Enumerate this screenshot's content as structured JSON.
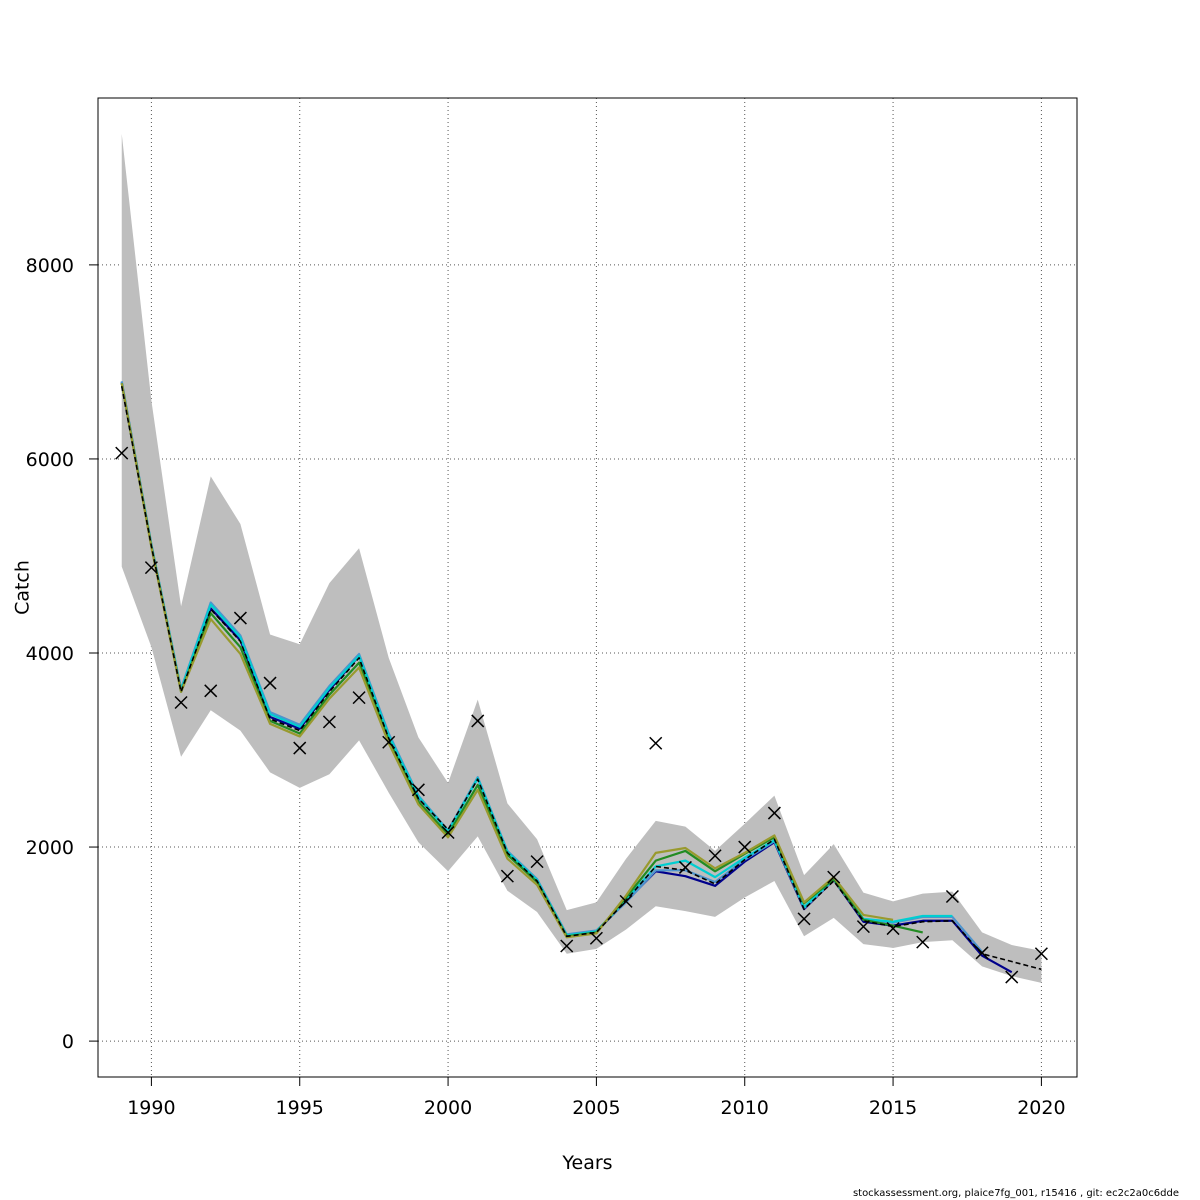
{
  "chart_data": {
    "type": "line",
    "title": "",
    "xlabel": "Years",
    "ylabel": "Catch",
    "xlim": [
      1988.2,
      2021.2
    ],
    "ylim": [
      -370,
      9720
    ],
    "x_ticks": [
      1990,
      1995,
      2000,
      2005,
      2010,
      2015,
      2020
    ],
    "y_ticks": [
      0,
      2000,
      4000,
      6000,
      8000
    ],
    "grid": true,
    "years": [
      1989,
      1990,
      1991,
      1992,
      1993,
      1994,
      1995,
      1996,
      1997,
      1998,
      1999,
      2000,
      2001,
      2002,
      2003,
      2004,
      2005,
      2006,
      2007,
      2008,
      2009,
      2010,
      2011,
      2012,
      2013,
      2014,
      2015,
      2016,
      2017,
      2018,
      2019,
      2020
    ],
    "confidence_band": {
      "color": "#bebebe",
      "upper": [
        9350,
        6600,
        4480,
        5820,
        5330,
        4190,
        4090,
        4720,
        5080,
        3950,
        3130,
        2660,
        3520,
        2450,
        2080,
        1350,
        1430,
        1880,
        2270,
        2210,
        1960,
        2240,
        2530,
        1710,
        2030,
        1530,
        1440,
        1520,
        1540,
        1120,
        990,
        930
      ],
      "lower": [
        4890,
        4060,
        2930,
        3410,
        3200,
        2770,
        2610,
        2750,
        3100,
        2560,
        2050,
        1750,
        2110,
        1550,
        1330,
        900,
        950,
        1150,
        1390,
        1340,
        1280,
        1480,
        1650,
        1080,
        1270,
        1000,
        960,
        1020,
        1040,
        770,
        670,
        600
      ]
    },
    "series": [
      {
        "color": "#000000",
        "dashed": true,
        "values": [
          6750,
          5100,
          3600,
          4450,
          4120,
          3320,
          3200,
          3600,
          3950,
          3120,
          2500,
          2180,
          2700,
          1940,
          1650,
          1080,
          1120,
          1450,
          1800,
          1760,
          1620,
          1870,
          2080,
          1360,
          1650,
          1240,
          1180,
          1230,
          1240,
          900,
          820,
          740
        ]
      },
      {
        "color": "#00008b",
        "dashed": false,
        "values": [
          6790,
          5110,
          3620,
          4460,
          4130,
          3340,
          3220,
          3620,
          3970,
          3140,
          2510,
          2170,
          2710,
          1950,
          1660,
          1090,
          1130,
          1440,
          1750,
          1700,
          1600,
          1850,
          2050,
          1360,
          1660,
          1230,
          1190,
          1240,
          1240,
          880,
          710,
          null
        ]
      },
      {
        "color": "#4f94cd",
        "dashed": false,
        "values": [
          6800,
          5120,
          3630,
          4520,
          4180,
          3390,
          3260,
          3660,
          3990,
          3170,
          2530,
          2170,
          2720,
          1960,
          1670,
          1100,
          1140,
          1430,
          1760,
          1760,
          1640,
          1870,
          2060,
          1370,
          1660,
          1250,
          1220,
          1280,
          1280,
          920,
          null,
          null
        ]
      },
      {
        "color": "#00ced1",
        "dashed": false,
        "values": [
          6780,
          5110,
          3620,
          4500,
          4160,
          3370,
          3240,
          3640,
          3970,
          3150,
          2520,
          2160,
          2710,
          1950,
          1660,
          1090,
          1130,
          1460,
          1800,
          1860,
          1690,
          1890,
          2070,
          1380,
          1670,
          1260,
          1230,
          1290,
          1290,
          null,
          null,
          null
        ]
      },
      {
        "color": "#228b22",
        "dashed": false,
        "values": [
          6780,
          5100,
          3600,
          4410,
          4060,
          3300,
          3170,
          3570,
          3900,
          3100,
          2470,
          2130,
          2640,
          1920,
          1640,
          1080,
          1120,
          1480,
          1860,
          1960,
          1750,
          1930,
          2100,
          1420,
          1670,
          1250,
          1190,
          1120,
          null,
          null,
          null,
          null
        ]
      },
      {
        "color": "#999a2e",
        "dashed": false,
        "values": [
          6780,
          5090,
          3600,
          4350,
          3990,
          3270,
          3140,
          3530,
          3850,
          3070,
          2440,
          2100,
          2590,
          1880,
          1610,
          1070,
          1110,
          1500,
          1940,
          1990,
          1780,
          1940,
          2120,
          1430,
          1690,
          1300,
          1250,
          null,
          null,
          null,
          null,
          null
        ]
      }
    ],
    "observations": {
      "marker": "x",
      "color": "#000000",
      "values": [
        6060,
        4880,
        3490,
        3610,
        4360,
        3690,
        3020,
        3290,
        3540,
        3080,
        2590,
        2150,
        3300,
        1700,
        1850,
        980,
        1060,
        1440,
        3070,
        1790,
        1910,
        2000,
        2350,
        1260,
        1690,
        1180,
        1160,
        1020,
        1490,
        910,
        660,
        900
      ]
    }
  },
  "footer": {
    "text": "stockassessment.org, plaice7fg_001, r15416 , git: ec2c2a0c6dde"
  }
}
